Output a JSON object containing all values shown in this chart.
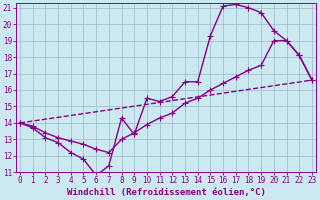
{
  "xlabel": "Windchill (Refroidissement éolien,°C)",
  "bg_color": "#cce8f0",
  "line_color": "#880088",
  "grid_color": "#99bbcc",
  "x_min": 0,
  "x_max": 23,
  "y_min": 11,
  "y_max": 21,
  "line1_x": [
    0,
    1,
    2,
    3,
    4,
    5,
    6,
    7,
    8,
    9,
    10,
    11,
    12,
    13,
    14,
    15,
    16,
    17,
    18,
    19,
    20,
    21,
    22,
    23
  ],
  "line1_y": [
    14.0,
    13.7,
    13.1,
    12.8,
    12.2,
    11.8,
    10.8,
    11.4,
    14.3,
    13.3,
    15.5,
    15.3,
    15.6,
    16.5,
    16.5,
    19.3,
    21.1,
    21.2,
    21.0,
    20.7,
    19.6,
    19.0,
    18.1,
    16.6
  ],
  "line2_x": [
    0,
    1,
    2,
    3,
    4,
    5,
    6,
    7,
    8,
    9,
    10,
    11,
    12,
    13,
    14,
    15,
    16,
    17,
    18,
    19,
    20,
    21,
    22,
    23
  ],
  "line2_y": [
    14.0,
    13.8,
    13.4,
    13.1,
    12.9,
    12.7,
    12.4,
    12.2,
    13.0,
    13.4,
    13.9,
    14.3,
    14.6,
    15.2,
    15.5,
    16.0,
    16.4,
    16.8,
    17.2,
    17.5,
    19.0,
    19.0,
    18.1,
    16.6
  ],
  "line3_x": [
    0,
    23
  ],
  "line3_y": [
    14.0,
    16.6
  ],
  "marker_size": 4,
  "linewidth": 1.0,
  "tick_fontsize": 5.5,
  "label_fontsize": 6.5
}
